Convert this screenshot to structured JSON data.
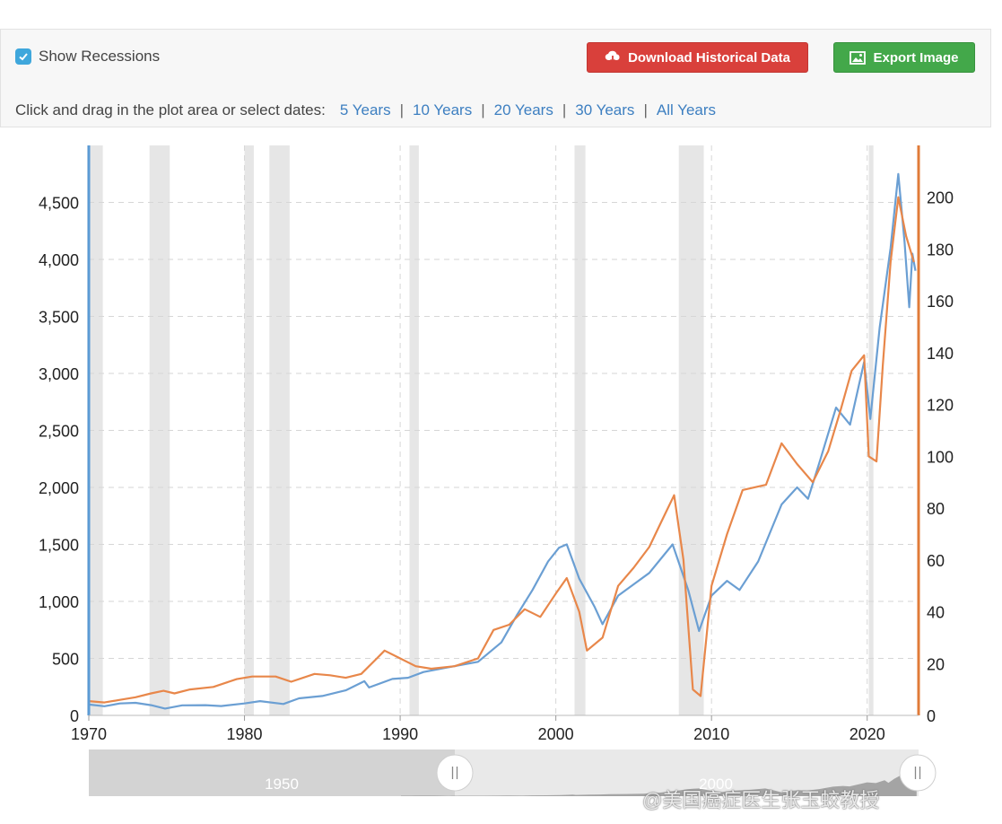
{
  "toolbar": {
    "show_recessions_label": "Show Recessions",
    "show_recessions_checked": true,
    "download_label": "Download Historical Data",
    "export_label": "Export Image",
    "dates_prompt": "Click and drag in the plot area or select dates:",
    "date_ranges": [
      "5 Years",
      "10 Years",
      "20 Years",
      "30 Years",
      "All Years"
    ]
  },
  "colors": {
    "left_series": "#6b9fd3",
    "right_series": "#e8874a",
    "left_axis": "#5b9bd5",
    "right_axis": "#e07b39",
    "recession_band": "#e6e6e6",
    "download_button": "#d9403b",
    "export_button": "#43a84a"
  },
  "navigator": {
    "labels": [
      "1950",
      "2000"
    ]
  },
  "watermark": "@美国癌症医生张玉蛟教授",
  "chart_data": {
    "type": "line",
    "x_ticks": [
      1970,
      1980,
      1990,
      2000,
      2010,
      2020
    ],
    "xlim": [
      1970,
      2023.3
    ],
    "ylim_left": [
      0,
      5000
    ],
    "y_ticks_left": [
      0,
      500,
      1000,
      1500,
      2000,
      2500,
      3000,
      3500,
      4000,
      4500
    ],
    "y_tick_labels_left": [
      "0",
      "500",
      "1,000",
      "1,500",
      "2,000",
      "2,500",
      "3,000",
      "3,500",
      "4,000",
      "4,500"
    ],
    "ylim_right": [
      0,
      220
    ],
    "y_ticks_right": [
      0,
      20,
      40,
      60,
      80,
      100,
      120,
      140,
      160,
      180,
      200
    ],
    "grid": true,
    "recessions": [
      [
        1969.9,
        1970.9
      ],
      [
        1973.9,
        1975.2
      ],
      [
        1980.0,
        1980.6
      ],
      [
        1981.6,
        1982.9
      ],
      [
        1990.6,
        1991.2
      ],
      [
        2001.2,
        2001.9
      ],
      [
        2007.9,
        2009.5
      ],
      [
        2020.1,
        2020.4
      ]
    ],
    "series": [
      {
        "axis": "left",
        "points": [
          [
            1970.0,
            95
          ],
          [
            1971.0,
            80
          ],
          [
            1972.0,
            105
          ],
          [
            1973.0,
            110
          ],
          [
            1974.0,
            90
          ],
          [
            1974.9,
            60
          ],
          [
            1976.0,
            88
          ],
          [
            1977.5,
            90
          ],
          [
            1978.5,
            82
          ],
          [
            1980.0,
            105
          ],
          [
            1981.0,
            125
          ],
          [
            1982.5,
            100
          ],
          [
            1983.5,
            150
          ],
          [
            1985.0,
            170
          ],
          [
            1986.5,
            220
          ],
          [
            1987.7,
            300
          ],
          [
            1988.0,
            245
          ],
          [
            1989.5,
            320
          ],
          [
            1990.5,
            330
          ],
          [
            1991.5,
            380
          ],
          [
            1993.0,
            420
          ],
          [
            1995.0,
            470
          ],
          [
            1996.5,
            640
          ],
          [
            1997.5,
            880
          ],
          [
            1998.5,
            1100
          ],
          [
            1999.5,
            1350
          ],
          [
            2000.2,
            1470
          ],
          [
            2000.7,
            1500
          ],
          [
            2001.5,
            1200
          ],
          [
            2002.5,
            950
          ],
          [
            2003.0,
            800
          ],
          [
            2004.0,
            1050
          ],
          [
            2005.0,
            1150
          ],
          [
            2006.0,
            1250
          ],
          [
            2007.5,
            1500
          ],
          [
            2008.5,
            1100
          ],
          [
            2009.2,
            740
          ],
          [
            2010.0,
            1050
          ],
          [
            2011.0,
            1180
          ],
          [
            2011.8,
            1100
          ],
          [
            2013.0,
            1350
          ],
          [
            2014.5,
            1850
          ],
          [
            2015.5,
            2000
          ],
          [
            2016.2,
            1900
          ],
          [
            2017.0,
            2250
          ],
          [
            2018.0,
            2700
          ],
          [
            2018.9,
            2550
          ],
          [
            2019.8,
            3100
          ],
          [
            2020.2,
            2600
          ],
          [
            2020.8,
            3400
          ],
          [
            2021.5,
            4100
          ],
          [
            2022.0,
            4750
          ],
          [
            2022.4,
            4150
          ],
          [
            2022.7,
            3580
          ],
          [
            2022.9,
            4050
          ],
          [
            2023.1,
            3900
          ]
        ]
      },
      {
        "axis": "right",
        "points": [
          [
            1970.0,
            5.5
          ],
          [
            1971.0,
            5.0
          ],
          [
            1972.0,
            6.0
          ],
          [
            1973.0,
            7.0
          ],
          [
            1974.0,
            8.5
          ],
          [
            1974.8,
            9.5
          ],
          [
            1975.5,
            8.5
          ],
          [
            1976.5,
            10.0
          ],
          [
            1978.0,
            11.0
          ],
          [
            1979.5,
            14.0
          ],
          [
            1980.5,
            15.0
          ],
          [
            1982.0,
            15.0
          ],
          [
            1983.0,
            13.0
          ],
          [
            1984.5,
            16.0
          ],
          [
            1985.5,
            15.5
          ],
          [
            1986.5,
            14.5
          ],
          [
            1987.5,
            16.0
          ],
          [
            1988.5,
            22.0
          ],
          [
            1989.0,
            25.0
          ],
          [
            1990.0,
            22.0
          ],
          [
            1991.0,
            19.0
          ],
          [
            1992.0,
            18.0
          ],
          [
            1993.5,
            19.0
          ],
          [
            1995.0,
            22.0
          ],
          [
            1996.0,
            33.0
          ],
          [
            1997.0,
            35.0
          ],
          [
            1998.0,
            41.0
          ],
          [
            1999.0,
            38.0
          ],
          [
            2000.0,
            47.0
          ],
          [
            2000.7,
            53.0
          ],
          [
            2001.5,
            40.0
          ],
          [
            2002.0,
            25.0
          ],
          [
            2003.0,
            30.0
          ],
          [
            2004.0,
            50.0
          ],
          [
            2005.0,
            57.0
          ],
          [
            2006.0,
            65.0
          ],
          [
            2006.8,
            75.0
          ],
          [
            2007.6,
            85.0
          ],
          [
            2008.2,
            60.0
          ],
          [
            2008.8,
            10.0
          ],
          [
            2009.3,
            7.5
          ],
          [
            2010.0,
            50.0
          ],
          [
            2011.0,
            70.0
          ],
          [
            2012.0,
            87.0
          ],
          [
            2013.5,
            89.0
          ],
          [
            2014.5,
            105.0
          ],
          [
            2015.5,
            97.0
          ],
          [
            2016.5,
            90.0
          ],
          [
            2017.5,
            102.0
          ],
          [
            2018.3,
            118.0
          ],
          [
            2019.0,
            133.0
          ],
          [
            2019.8,
            139.0
          ],
          [
            2020.1,
            100.0
          ],
          [
            2020.6,
            98.0
          ],
          [
            2021.0,
            135.0
          ],
          [
            2021.5,
            175.0
          ],
          [
            2022.0,
            200.0
          ],
          [
            2022.5,
            185.0
          ],
          [
            2023.0,
            175.0
          ]
        ]
      }
    ]
  }
}
